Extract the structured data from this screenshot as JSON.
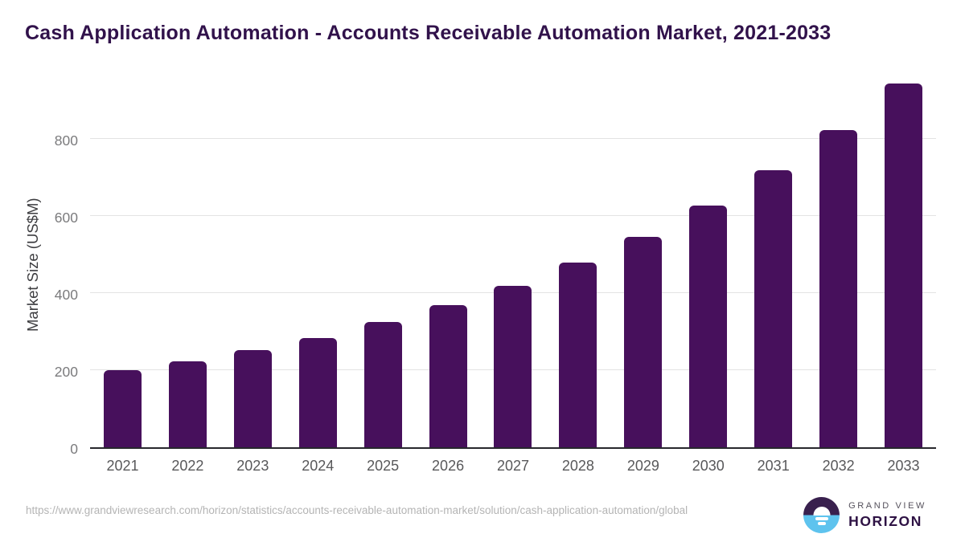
{
  "header": {
    "title": "Cash Application Automation - Accounts Receivable Automation Market, 2021-2033"
  },
  "chart_data": {
    "type": "bar",
    "title": "Cash Application Automation - Accounts Receivable Automation Market, 2021-2033",
    "categories": [
      "2021",
      "2022",
      "2023",
      "2024",
      "2025",
      "2026",
      "2027",
      "2028",
      "2029",
      "2030",
      "2031",
      "2032",
      "2033"
    ],
    "values": [
      200,
      222,
      252,
      284,
      324,
      368,
      418,
      480,
      546,
      628,
      718,
      822,
      944
    ],
    "xlabel": "",
    "ylabel": "Market Size (US$M)",
    "ylim": [
      0,
      956
    ],
    "yticks": [
      0,
      200,
      400,
      600,
      800
    ],
    "grid": true,
    "legend": "none",
    "bar_color": "#47105c"
  },
  "colors": {
    "bar_purple": "#47105c",
    "title_purple": "#31124b",
    "gridline": "#e3e3e3",
    "axis_line": "#28282d",
    "tick_label": "#7b7b7d",
    "logo_dark": "#39204e",
    "logo_blue": "#5ec3ee"
  },
  "footer": {
    "source_url": "https://www.grandviewresearch.com/horizon/statistics/accounts-receivable-automation-market/solution/cash-application-automation/global"
  },
  "logo": {
    "top_text": "GRAND VIEW",
    "bottom_text": "HORIZON"
  }
}
